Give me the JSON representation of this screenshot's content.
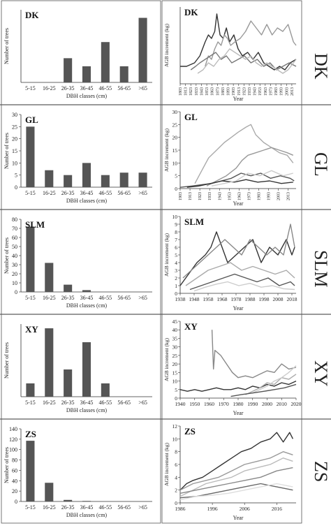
{
  "rows": [
    {
      "tag": "DK",
      "vtag": "DK"
    },
    {
      "tag": "GL",
      "vtag": "GL"
    },
    {
      "tag": "SLM",
      "vtag": "SLM"
    },
    {
      "tag": "XY",
      "vtag": "XY"
    },
    {
      "tag": "ZS",
      "vtag": "ZS"
    }
  ],
  "chart_data": [
    {
      "panel": "DK-histogram",
      "type": "bar",
      "title": "DK",
      "xlabel": "DBH classes (cm)",
      "ylabel": "Number of trees",
      "categories": [
        "5-15",
        "16-25",
        "26-35",
        "36-45",
        "46-55",
        "56-65",
        ">65"
      ],
      "values": [
        0,
        0,
        3,
        2,
        5,
        2,
        8
      ],
      "ylim": [
        0,
        9
      ],
      "yticks": [],
      "bar_color": "#555555"
    },
    {
      "panel": "DK-increment",
      "type": "line",
      "title": "DK",
      "xlabel": "Year",
      "ylabel": "AGB increment (kg)",
      "xlim": [
        1803,
        2021
      ],
      "ylim": [
        0,
        22
      ],
      "yticks": [],
      "xticks": [
        1803,
        1813,
        1823,
        1833,
        1843,
        1853,
        1863,
        1873,
        1883,
        1893,
        1903,
        1913,
        1923,
        1933,
        1943,
        1953,
        1963,
        1973,
        1983,
        1993,
        2003,
        2013
      ],
      "series": [
        {
          "color": "#333333",
          "x": [
            1803,
            1815,
            1830,
            1840,
            1850,
            1856,
            1862,
            1868,
            1872,
            1878,
            1884,
            1890,
            1896,
            1904,
            1912,
            1920,
            1930,
            1940,
            1950,
            1960,
            1970,
            1980,
            1990,
            2000,
            2010,
            2021
          ],
          "y": [
            5,
            5,
            6,
            8,
            12,
            14,
            13,
            15,
            20,
            14,
            13,
            16,
            12,
            14,
            10,
            8,
            9,
            7,
            9,
            6,
            5,
            4,
            5,
            4,
            6,
            7
          ]
        },
        {
          "color": "#999999",
          "x": [
            1850,
            1856,
            1862,
            1868,
            1874,
            1880,
            1886,
            1892,
            1898,
            1906,
            1916,
            1926,
            1936,
            1946,
            1956,
            1966,
            1976,
            1986,
            1996,
            2006,
            2016,
            2021
          ],
          "y": [
            5,
            8,
            7,
            10,
            12,
            11,
            14,
            13,
            11,
            12,
            13,
            15,
            18,
            16,
            14,
            17,
            14,
            16,
            15,
            17,
            12,
            11
          ]
        },
        {
          "color": "#777777",
          "x": [
            1823,
            1832,
            1840,
            1850,
            1860,
            1870,
            1880,
            1890,
            1900,
            1912,
            1924,
            1936,
            1948,
            1960,
            1972,
            1984,
            1996,
            2008,
            2021
          ],
          "y": [
            4,
            5,
            6,
            7,
            8,
            9,
            7,
            8,
            6,
            7,
            8,
            6,
            7,
            5,
            6,
            4,
            5,
            6,
            5
          ]
        },
        {
          "color": "#bbbbbb",
          "x": [
            1836,
            1846,
            1856,
            1866,
            1876,
            1886,
            1896,
            1906,
            1916,
            1926,
            1936,
            1946,
            1956,
            1966,
            1976,
            1986,
            1996,
            2006,
            2016,
            2021
          ],
          "y": [
            3,
            4,
            6,
            5,
            7,
            8,
            10,
            9,
            8,
            7,
            8,
            6,
            5,
            6,
            5,
            4,
            3,
            4,
            6,
            7
          ]
        }
      ]
    },
    {
      "panel": "GL-histogram",
      "type": "bar",
      "title": "GL",
      "xlabel": "DBH classes (cm)",
      "ylabel": "Number of trees",
      "categories": [
        "5-15",
        "16-25",
        "26-35",
        "36-45",
        "46-55",
        "56-65",
        ">65"
      ],
      "values": [
        25,
        7,
        5,
        10,
        5,
        6,
        6
      ],
      "ylim": [
        0,
        30
      ],
      "yticks": [
        0,
        5,
        10,
        15,
        20,
        25,
        30
      ],
      "bar_color": "#555555"
    },
    {
      "panel": "GL-increment",
      "type": "line",
      "title": "GL",
      "xlabel": "Year",
      "ylabel": "AGB increment (kg)",
      "xlim": [
        1903,
        2021
      ],
      "ylim": [
        0,
        30
      ],
      "yticks": [
        0,
        5,
        10,
        15,
        20,
        25,
        30
      ],
      "xticks": [
        1903,
        1913,
        1923,
        1933,
        1943,
        1953,
        1963,
        1973,
        1983,
        1993,
        2003,
        2013
      ],
      "series": [
        {
          "color": "#aaaaaa",
          "x": [
            1918,
            1925,
            1932,
            1940,
            1948,
            1955,
            1962,
            1970,
            1975,
            1980,
            1988,
            1996,
            2004,
            2012,
            2018
          ],
          "y": [
            2,
            7,
            12,
            15,
            18,
            20,
            22,
            24,
            25,
            21,
            18,
            16,
            14,
            13,
            10
          ]
        },
        {
          "color": "#999999",
          "x": [
            1930,
            1940,
            1950,
            1960,
            1966,
            1972,
            1980,
            1988,
            1996,
            2004,
            2012,
            2018
          ],
          "y": [
            1,
            3,
            5,
            8,
            11,
            13,
            14,
            15,
            16,
            15,
            14,
            13
          ]
        },
        {
          "color": "#555555",
          "x": [
            1903,
            1915,
            1925,
            1935,
            1945,
            1955,
            1965,
            1975,
            1985,
            1995,
            2005,
            2015,
            2019
          ],
          "y": [
            0.5,
            1,
            1.5,
            2,
            3,
            4,
            6,
            5,
            6,
            4,
            5,
            4,
            3
          ]
        },
        {
          "color": "#333333",
          "x": [
            1910,
            1922,
            1934,
            1946,
            1958,
            1970,
            1982,
            1994,
            2006,
            2018
          ],
          "y": [
            0.5,
            1,
            2,
            3,
            2.5,
            3.5,
            2.5,
            3,
            2,
            2.5
          ]
        },
        {
          "color": "#cccccc",
          "x": [
            1935,
            1948,
            1960,
            1972,
            1984,
            1996,
            2008,
            2018
          ],
          "y": [
            1,
            2,
            3,
            6,
            5,
            7,
            5,
            6
          ]
        }
      ]
    },
    {
      "panel": "SLM-histogram",
      "type": "bar",
      "title": "SLM",
      "xlabel": "DBH classes (cm)",
      "ylabel": "Number of trees",
      "categories": [
        "5-15",
        "16-25",
        "26-35",
        "36-45",
        "46-55",
        "56-65",
        ">65"
      ],
      "values": [
        72,
        32,
        8,
        2,
        0,
        0,
        0
      ],
      "ylim": [
        0,
        80
      ],
      "yticks": [
        0,
        10,
        20,
        30,
        40,
        50,
        60,
        70,
        80
      ],
      "bar_color": "#555555"
    },
    {
      "panel": "SLM-increment",
      "type": "line",
      "title": "SLM",
      "xlabel": "Year",
      "ylabel": "AGB increment (kg)",
      "xlim": [
        1938,
        2021
      ],
      "ylim": [
        0,
        10
      ],
      "yticks": [
        0,
        1,
        2,
        3,
        4,
        5,
        6,
        7,
        8,
        9,
        10
      ],
      "xticks": [
        1938,
        1948,
        1958,
        1968,
        1978,
        1988,
        1998,
        2008,
        2018
      ],
      "series": [
        {
          "color": "#333333",
          "x": [
            1938,
            1944,
            1950,
            1956,
            1960,
            1964,
            1968,
            1972,
            1978,
            1984,
            1990,
            1996,
            2002,
            2008,
            2014,
            2018,
            2020
          ],
          "y": [
            1,
            2.5,
            4,
            5,
            6,
            8,
            6,
            4,
            5,
            6,
            7,
            4,
            6,
            5,
            7,
            5,
            6
          ]
        },
        {
          "color": "#888888",
          "x": [
            1940,
            1946,
            1952,
            1958,
            1964,
            1970,
            1976,
            1982,
            1988,
            1994,
            2000,
            2006,
            2012,
            2017,
            2020
          ],
          "y": [
            2,
            3,
            4,
            5,
            6,
            7,
            6,
            5,
            7,
            6,
            5,
            6,
            5,
            9,
            6
          ]
        },
        {
          "color": "#aaaaaa",
          "x": [
            1942,
            1950,
            1958,
            1966,
            1974,
            1982,
            1990,
            1998,
            2006,
            2014,
            2020
          ],
          "y": [
            1,
            2,
            3,
            3.5,
            4,
            3,
            3.5,
            3,
            2.5,
            3,
            2
          ]
        },
        {
          "color": "#555555",
          "x": [
            1945,
            1953,
            1961,
            1969,
            1977,
            1985,
            1993,
            2001,
            2009,
            2017,
            2020
          ],
          "y": [
            0.5,
            1,
            1.5,
            2,
            2.5,
            2,
            1.5,
            2,
            1,
            1.5,
            1
          ]
        },
        {
          "color": "#cccccc",
          "x": [
            1948,
            1956,
            1964,
            1972,
            1980,
            1988,
            1996,
            2004,
            2012,
            2020
          ],
          "y": [
            0.3,
            0.8,
            1.2,
            1.5,
            1,
            1.3,
            0.8,
            1,
            0.6,
            0.5
          ]
        }
      ]
    },
    {
      "panel": "XY-histogram",
      "type": "bar",
      "title": "XY",
      "xlabel": "DBH classes (cm)",
      "ylabel": "Number of trees",
      "categories": [
        "5-15",
        "16-25",
        "26-35",
        "36-45",
        "46-55",
        "56-65",
        ">65"
      ],
      "values": [
        2.2,
        11.3,
        4.5,
        9,
        2.2,
        0,
        0
      ],
      "ylim": [
        0,
        12
      ],
      "yticks": [],
      "bar_color": "#555555"
    },
    {
      "panel": "XY-increment",
      "type": "line",
      "title": "XY",
      "xlabel": "Year",
      "ylabel": "AGB increment (kg)",
      "xlim": [
        1940,
        2020
      ],
      "ylim": [
        0,
        45
      ],
      "yticks": [
        0,
        5,
        10,
        15,
        20,
        25,
        30,
        35,
        40,
        45
      ],
      "xticks": [
        1940,
        1950,
        1960,
        1970,
        1980,
        1990,
        2000,
        2010,
        2020
      ],
      "series": [
        {
          "color": "#888888",
          "x": [
            1962,
            1963,
            1964,
            1968,
            1972,
            1976,
            1980,
            1985,
            1990,
            1995,
            2000,
            2005,
            2010,
            2015,
            2020
          ],
          "y": [
            40,
            17,
            28,
            25,
            20,
            15,
            12,
            13,
            12,
            14,
            16,
            15,
            20,
            17,
            18
          ]
        },
        {
          "color": "#333333",
          "x": [
            1940,
            1945,
            1950,
            1955,
            1960,
            1965,
            1970,
            1975,
            1980,
            1985,
            1990,
            1995,
            2000,
            2005,
            2010,
            2015,
            2020
          ],
          "y": [
            5,
            4,
            5,
            4,
            5,
            6,
            5,
            5,
            6,
            5,
            7,
            6,
            8,
            7,
            9,
            8,
            10
          ]
        },
        {
          "color": "#aaaaaa",
          "x": [
            1985,
            1990,
            1995,
            2000,
            2005,
            2010,
            2015,
            2020
          ],
          "y": [
            2,
            4,
            6,
            9,
            8,
            12,
            11,
            14
          ]
        },
        {
          "color": "#cccccc",
          "x": [
            1990,
            1995,
            2000,
            2005,
            2010,
            2015,
            2020
          ],
          "y": [
            3,
            5,
            7,
            10,
            12,
            15,
            19
          ]
        },
        {
          "color": "#555555",
          "x": [
            1975,
            1982,
            1990,
            1998,
            2005,
            2012,
            2020
          ],
          "y": [
            1,
            2,
            3,
            4,
            5,
            6,
            8
          ]
        }
      ]
    },
    {
      "panel": "ZS-histogram",
      "type": "bar",
      "title": "ZS",
      "xlabel": "DBH classes (cm)",
      "ylabel": "Number of trees",
      "categories": [
        "5-15",
        "16-25",
        "26-35",
        "36-45",
        "46-55",
        "56-65",
        ">65"
      ],
      "values": [
        117,
        36,
        3,
        1,
        0,
        0,
        0
      ],
      "ylim": [
        0,
        140
      ],
      "yticks": [
        0,
        20,
        40,
        60,
        80,
        100,
        120,
        140
      ],
      "bar_color": "#555555"
    },
    {
      "panel": "ZS-increment",
      "type": "line",
      "title": "ZS",
      "xlabel": "Year",
      "ylabel": "AGB increment (kg)",
      "xlim": [
        1986,
        2022
      ],
      "ylim": [
        0,
        12
      ],
      "yticks": [
        0,
        2,
        4,
        6,
        8,
        10,
        12
      ],
      "xticks": [
        1986,
        1996,
        2006,
        2016
      ],
      "series": [
        {
          "color": "#333333",
          "x": [
            1986,
            1988,
            1990,
            1993,
            1996,
            1999,
            2002,
            2005,
            2008,
            2011,
            2014,
            2016,
            2018,
            2020,
            2021
          ],
          "y": [
            2,
            3,
            3.5,
            4,
            5,
            6,
            7,
            8,
            8.5,
            9.5,
            10,
            11,
            9.5,
            11,
            10
          ]
        },
        {
          "color": "#999999",
          "x": [
            1986,
            1990,
            1994,
            1998,
            2002,
            2006,
            2010,
            2014,
            2018,
            2021
          ],
          "y": [
            2,
            3,
            3.5,
            4,
            5,
            6,
            6.5,
            7,
            8,
            7.5
          ]
        },
        {
          "color": "#bbbbbb",
          "x": [
            1986,
            1990,
            1994,
            1998,
            2002,
            2006,
            2010,
            2014,
            2018,
            2021
          ],
          "y": [
            1,
            2,
            3,
            3.5,
            4,
            5,
            5.5,
            6,
            7,
            6.5
          ]
        },
        {
          "color": "#666666",
          "x": [
            1986,
            1991,
            1996,
            2001,
            2006,
            2011,
            2016,
            2021
          ],
          "y": [
            0.8,
            1,
            1.5,
            2,
            2.5,
            3,
            2.5,
            2
          ]
        },
        {
          "color": "#888888",
          "x": [
            1986,
            1991,
            1996,
            2001,
            2006,
            2011,
            2016,
            2021
          ],
          "y": [
            1.5,
            2,
            2.5,
            3,
            3.5,
            4,
            5,
            5.5
          ]
        },
        {
          "color": "#dddddd",
          "x": [
            1986,
            1991,
            1996,
            2001,
            2006,
            2011,
            2016,
            2021
          ],
          "y": [
            0.5,
            1,
            1.2,
            1.5,
            2,
            2.5,
            3,
            2.5
          ]
        }
      ]
    }
  ]
}
